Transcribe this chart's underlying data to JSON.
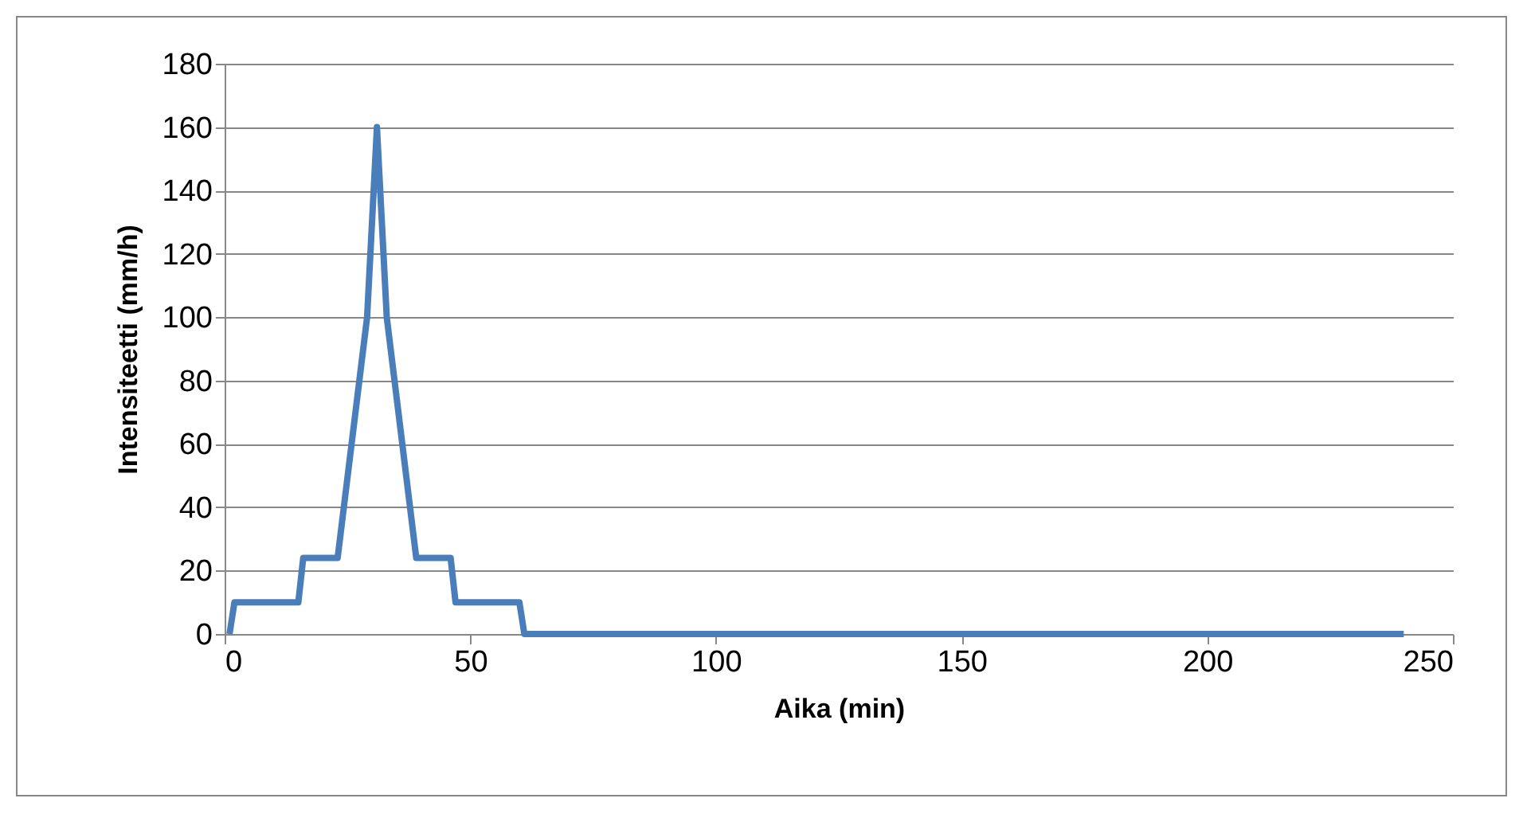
{
  "chart_data": {
    "type": "line",
    "xlabel": "Aika (min)",
    "ylabel": "Intensiteetti (mm/h)",
    "x": [
      1,
      2,
      15,
      16,
      23,
      29,
      31,
      33,
      39,
      46,
      47,
      60,
      61,
      240
    ],
    "series": [
      {
        "color": "#4a7ebb",
        "values": [
          0,
          10,
          10,
          24,
          24,
          100,
          160,
          100,
          24,
          24,
          10,
          10,
          0,
          0
        ]
      }
    ],
    "xlim": [
      0,
      250
    ],
    "xticks": [
      0,
      50,
      100,
      150,
      200,
      250
    ],
    "ylim": [
      0,
      180
    ],
    "yticks": [
      0,
      20,
      40,
      60,
      80,
      100,
      120,
      140,
      160,
      180
    ],
    "grid": "y",
    "legend": false,
    "marker": "none",
    "line_style": "solid"
  }
}
